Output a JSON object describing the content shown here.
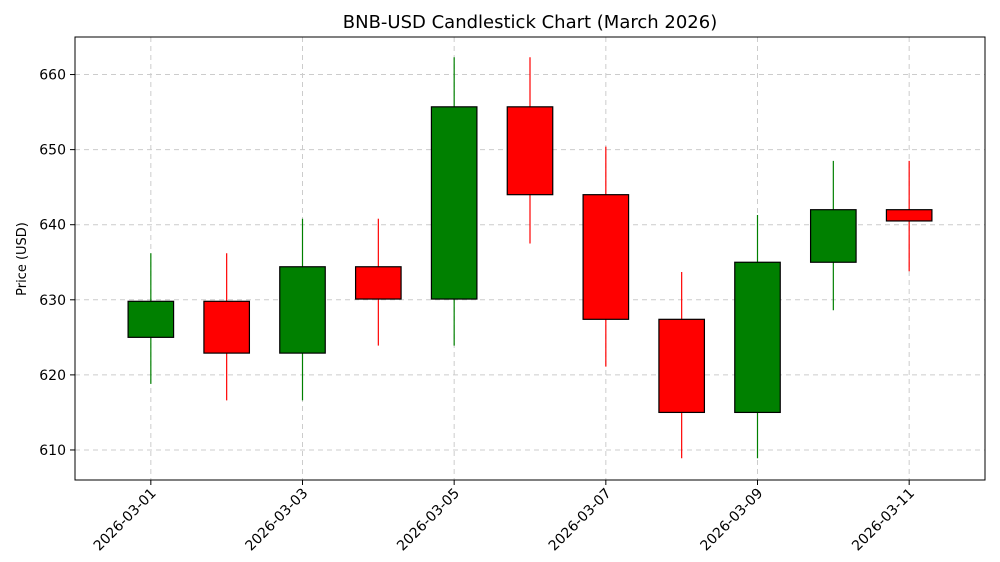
{
  "chart_data": {
    "type": "candlestick",
    "title": "BNB-USD Candlestick Chart (March 2026)",
    "xlabel": "",
    "ylabel": "Price (USD)",
    "ylim": [
      606,
      665
    ],
    "yticks": [
      610,
      620,
      630,
      640,
      650,
      660
    ],
    "xlim": [
      "2026-02-28",
      "2026-03-12"
    ],
    "xtick_labels": [
      "2026-03-01",
      "2026-03-03",
      "2026-03-05",
      "2026-03-07",
      "2026-03-09",
      "2026-03-11"
    ],
    "grid": true,
    "colors": {
      "up": "#008000",
      "down": "#ff0000"
    },
    "candles": [
      {
        "date": "2026-03-01",
        "open": 625.0,
        "high": 636.2,
        "low": 618.8,
        "close": 629.8
      },
      {
        "date": "2026-03-02",
        "open": 629.8,
        "high": 636.2,
        "low": 616.6,
        "close": 622.9
      },
      {
        "date": "2026-03-03",
        "open": 622.9,
        "high": 640.8,
        "low": 616.6,
        "close": 634.4
      },
      {
        "date": "2026-03-04",
        "open": 634.4,
        "high": 640.8,
        "low": 623.9,
        "close": 630.1
      },
      {
        "date": "2026-03-05",
        "open": 630.1,
        "high": 662.3,
        "low": 623.9,
        "close": 655.7
      },
      {
        "date": "2026-03-06",
        "open": 655.7,
        "high": 662.3,
        "low": 637.5,
        "close": 644.0
      },
      {
        "date": "2026-03-07",
        "open": 644.0,
        "high": 650.4,
        "low": 621.1,
        "close": 627.4
      },
      {
        "date": "2026-03-08",
        "open": 627.4,
        "high": 633.7,
        "low": 608.9,
        "close": 615.0
      },
      {
        "date": "2026-03-09",
        "open": 615.0,
        "high": 641.3,
        "low": 608.9,
        "close": 635.0
      },
      {
        "date": "2026-03-10",
        "open": 635.0,
        "high": 648.5,
        "low": 628.6,
        "close": 642.0
      },
      {
        "date": "2026-03-11",
        "open": 642.0,
        "high": 648.5,
        "low": 633.8,
        "close": 640.5
      }
    ]
  }
}
